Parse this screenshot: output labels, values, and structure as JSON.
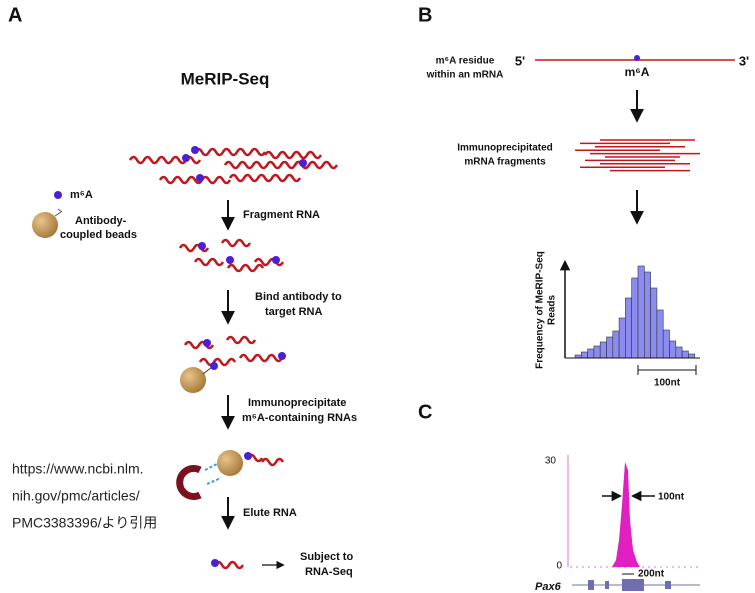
{
  "panel_a": {
    "letter": "A",
    "title": "MeRIP-Seq",
    "legend": {
      "m6a": "m⁶A",
      "beads": [
        "Antibody-",
        "coupled beads"
      ]
    },
    "steps": [
      {
        "lines": [
          "Fragment RNA"
        ]
      },
      {
        "lines": [
          "Bind antibody to",
          "target RNA"
        ]
      },
      {
        "lines": [
          "Immunoprecipitate",
          "m⁶A-containing RNAs"
        ]
      },
      {
        "lines": [
          "Elute RNA"
        ]
      }
    ],
    "final": [
      "Subject to",
      "RNA-Seq"
    ],
    "source": [
      "https://www.ncbi.nlm.",
      "nih.gov/pmc/articles/",
      "PMC3383396/より引用"
    ]
  },
  "panel_b": {
    "letter": "B",
    "residue_label": [
      "m⁶A residue",
      "within an mRNA"
    ],
    "five_prime": "5'",
    "three_prime": "3'",
    "m6a": "m⁶A",
    "fragments_label": [
      "Immunoprecipitated",
      "mRNA fragments"
    ],
    "y_label": [
      "Frequency of MeRIP-Seq",
      "Reads"
    ],
    "scale": "100nt"
  },
  "panel_c": {
    "letter": "C",
    "y_top": "30",
    "y_bottom": "0",
    "peak_width": "100nt",
    "span": "200nt",
    "gene": "Pax6"
  }
}
